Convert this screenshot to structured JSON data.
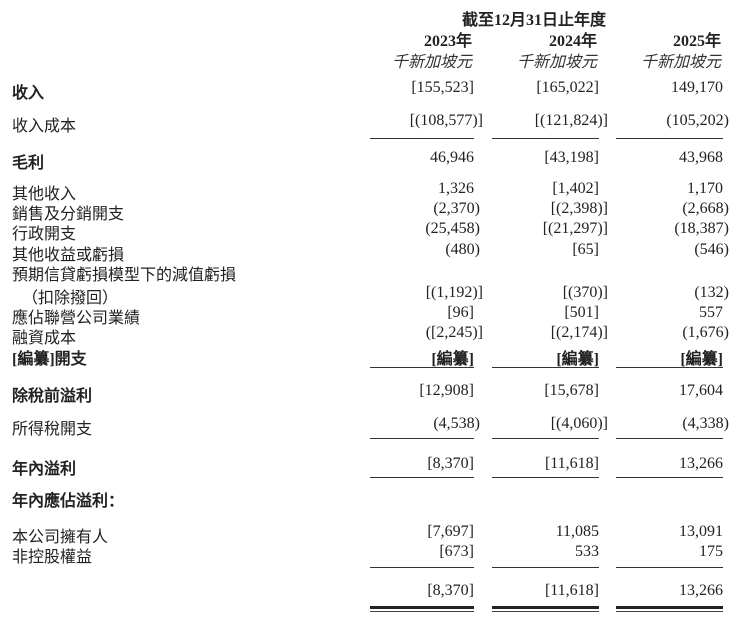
{
  "header": {
    "period": "截至12月31日止年度",
    "years": [
      "2023年",
      "2024年",
      "2025年"
    ],
    "unit": "千新加坡元"
  },
  "rows": [
    {
      "label": "收入",
      "bold": true,
      "values": [
        "[155,523]",
        "[165,022]",
        "149,170"
      ]
    },
    {
      "label": "收入成本",
      "bold": false,
      "values": [
        "[(108,577)]",
        "[(121,824)]",
        "(105,202)"
      ]
    },
    {
      "label": "毛利",
      "bold": true,
      "values": [
        "46,946",
        "[43,198]",
        "43,968"
      ]
    },
    {
      "label": "其他收入",
      "bold": false,
      "values": [
        "1,326",
        "[1,402]",
        "1,170"
      ]
    },
    {
      "label": "銷售及分銷開支",
      "bold": false,
      "values": [
        "(2,370)",
        "[(2,398)]",
        "(2,668)"
      ]
    },
    {
      "label": "行政開支",
      "bold": false,
      "values": [
        "(25,458)",
        "[(21,297)]",
        "(18,387)"
      ]
    },
    {
      "label": "其他收益或虧損",
      "bold": false,
      "values": [
        "(480)",
        "[65]",
        "(546)"
      ]
    },
    {
      "label": "預期信貸虧損模型下的減值虧損",
      "bold": false,
      "values": [
        "",
        "",
        ""
      ]
    },
    {
      "label": "（扣除撥回）",
      "bold": false,
      "values": [
        "[(1,192)]",
        "[(370)]",
        "(132)"
      ]
    },
    {
      "label": "應佔聯營公司業績",
      "bold": false,
      "values": [
        "[96]",
        "[501]",
        "557"
      ]
    },
    {
      "label": "融資成本",
      "bold": false,
      "values": [
        "([2,245)]",
        "[(2,174)]",
        "(1,676)"
      ]
    },
    {
      "label": "[編纂]開支",
      "bold": true,
      "values": [
        "[編纂]",
        "[編纂]",
        "[編纂]"
      ]
    },
    {
      "label": "除稅前溢利",
      "bold": true,
      "values": [
        "[12,908]",
        "[15,678]",
        "17,604"
      ]
    },
    {
      "label": "所得稅開支",
      "bold": false,
      "values": [
        "(4,538)",
        "[(4,060)]",
        "(4,338)"
      ]
    },
    {
      "label": "年內溢利",
      "bold": true,
      "values": [
        "[8,370]",
        "[11,618]",
        "13,266"
      ]
    },
    {
      "label": "年內應佔溢利：",
      "bold": true,
      "values": [
        "",
        "",
        ""
      ]
    },
    {
      "label": "本公司擁有人",
      "bold": false,
      "values": [
        "[7,697]",
        "11,085",
        "13,091"
      ]
    },
    {
      "label": "非控股權益",
      "bold": false,
      "values": [
        "[673]",
        "533",
        "175"
      ]
    },
    {
      "label": "",
      "bold": false,
      "values": [
        "[8,370]",
        "[11,618]",
        "13,266"
      ]
    }
  ]
}
